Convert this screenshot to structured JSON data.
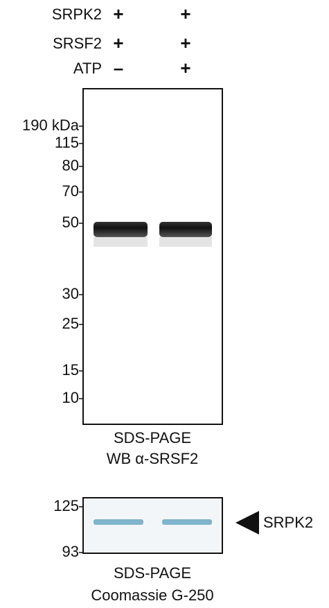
{
  "conditions": [
    {
      "label": "SRPK2",
      "lanes": [
        "+",
        "+"
      ]
    },
    {
      "label": "SRSF2",
      "lanes": [
        "+",
        "+"
      ]
    },
    {
      "label": "ATP",
      "lanes": [
        "–",
        "+"
      ]
    }
  ],
  "western_blot": {
    "markers": [
      "190 kDa",
      "115",
      "80",
      "70",
      "50",
      "30",
      "25",
      "15",
      "10"
    ],
    "caption": [
      "SDS-PAGE",
      "WB α-SRSF2"
    ]
  },
  "coomassie_gel": {
    "markers": [
      "125",
      "93"
    ],
    "band_label": "SRPK2",
    "caption": [
      "SDS-PAGE",
      "Coomassie G-250"
    ]
  }
}
